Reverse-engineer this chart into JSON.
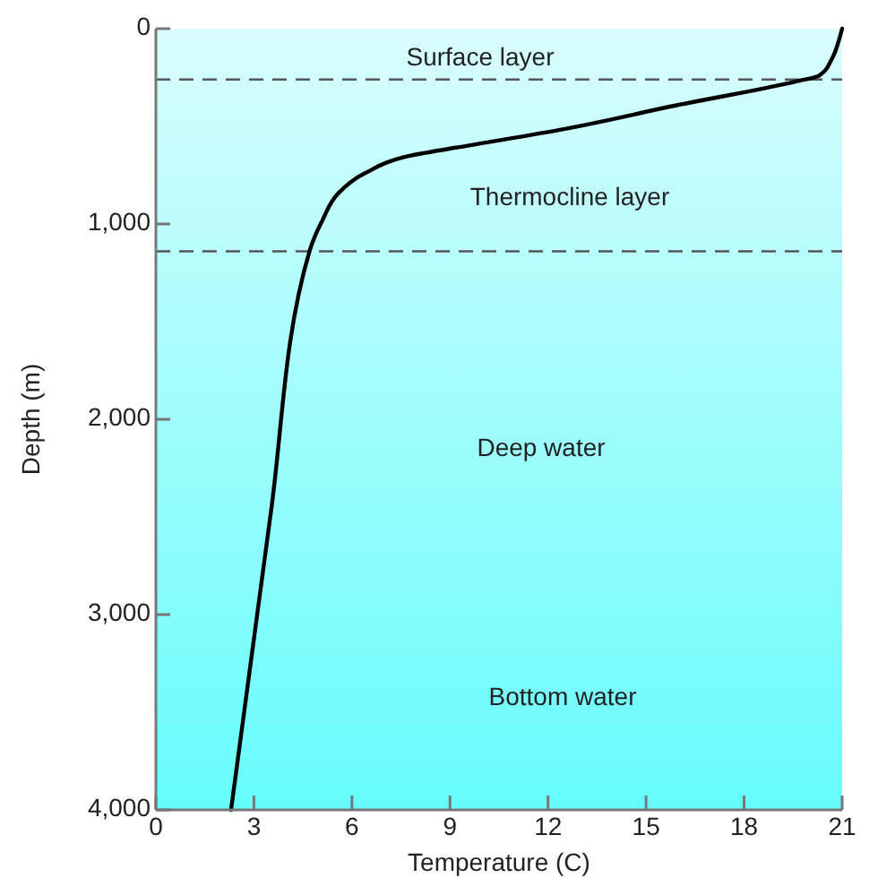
{
  "chart_data": {
    "type": "line",
    "xlabel": "Temperature (C)",
    "ylabel": "Depth (m)",
    "xlim": [
      0,
      21
    ],
    "xticks": [
      0,
      3,
      6,
      9,
      12,
      15,
      18,
      21
    ],
    "ylim": [
      4000,
      0
    ],
    "yticks": [
      0,
      {
        "value": 1000,
        "label": "1,000"
      },
      {
        "value": 2000,
        "label": "2,000"
      },
      {
        "value": 3000,
        "label": "3,000"
      },
      {
        "value": 4000,
        "label": "4,000"
      }
    ],
    "grid": false,
    "marker": "none",
    "line_style": "solid",
    "series": [
      {
        "color": "#000000",
        "x": [
          21,
          20.9,
          20.7,
          20.3,
          19.6,
          16,
          12.3,
          9.5,
          7.8,
          6.4,
          5.6,
          5.1,
          4.7,
          3.5,
          2.3
        ],
        "values": [
          0,
          60,
          150,
          240,
          270,
          390,
          520,
          600,
          650,
          740,
          840,
          980,
          1140,
          2500,
          4000
        ]
      }
    ],
    "ref_lines": [
      {
        "axis": "y",
        "value": 260,
        "line_style": "dashed",
        "color": "#555555"
      },
      {
        "axis": "y",
        "value": 1140,
        "line_style": "dashed",
        "color": "#555555"
      }
    ],
    "annotations": [
      "Surface layer",
      "Thermocline layer",
      "Deep water",
      "Bottom water"
    ]
  }
}
